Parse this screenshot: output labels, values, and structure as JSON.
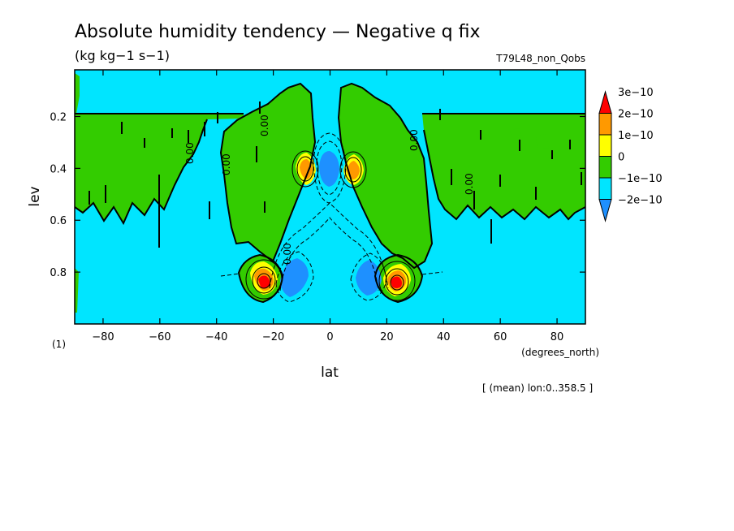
{
  "chart_data": {
    "type": "heatmap",
    "title": "Absolute humidity tendency — Negative q fix",
    "units": "(kg kg−1 s−1)",
    "experiment": "T79L48_non_Qobs",
    "xlabel": "lat",
    "xunits": "(degrees_north)",
    "ylabel": "lev",
    "yunits": "(1)",
    "footnote": "[ (mean) lon:0..358.5 ]",
    "xlim": [
      -90,
      90
    ],
    "ylim": [
      1.0,
      0.02
    ],
    "y_inverted": true,
    "xticks": [
      -80,
      -60,
      -40,
      -20,
      0,
      20,
      40,
      60,
      80
    ],
    "xtick_labels": [
      "−80",
      "−60",
      "−40",
      "−20",
      "0",
      "20",
      "40",
      "60",
      "80"
    ],
    "yticks": [
      0.2,
      0.4,
      0.6,
      0.8
    ],
    "ytick_labels": [
      "0.2",
      "0.4",
      "0.6",
      "0.8"
    ],
    "contour_label": "0.00",
    "colorbar": {
      "placement": "right",
      "levels": [
        -2e-10,
        -1e-10,
        0,
        1e-10,
        2e-10,
        3e-10
      ],
      "level_labels": [
        "−2e−10",
        "−1e−10",
        "0",
        "1e−10",
        "2e−10",
        "3e−10"
      ],
      "colors": [
        "#1e90ff",
        "#00e5ff",
        "#33cc00",
        "#ffff00",
        "#ff9900",
        "#ff0000"
      ]
    },
    "features": [
      {
        "name": "positive-max-south-lower",
        "lat": -23,
        "lev": 0.84,
        "value": 3e-10
      },
      {
        "name": "positive-max-north-lower",
        "lat": 23,
        "lev": 0.84,
        "value": 3e-10
      },
      {
        "name": "positive-max-south-upper",
        "lat": -8,
        "lev": 0.38,
        "value": 2e-10
      },
      {
        "name": "positive-max-north-upper",
        "lat": 8,
        "lev": 0.38,
        "value": 2e-10
      },
      {
        "name": "negative-min-equator",
        "lat": 0,
        "lev": 0.37,
        "value": -2e-10
      },
      {
        "name": "negative-min-south-lower",
        "lat": -15,
        "lev": 0.84,
        "value": -2e-10
      },
      {
        "name": "negative-min-north-lower",
        "lat": 14,
        "lev": 0.84,
        "value": -2e-10
      }
    ],
    "background_value": -1e-10
  }
}
